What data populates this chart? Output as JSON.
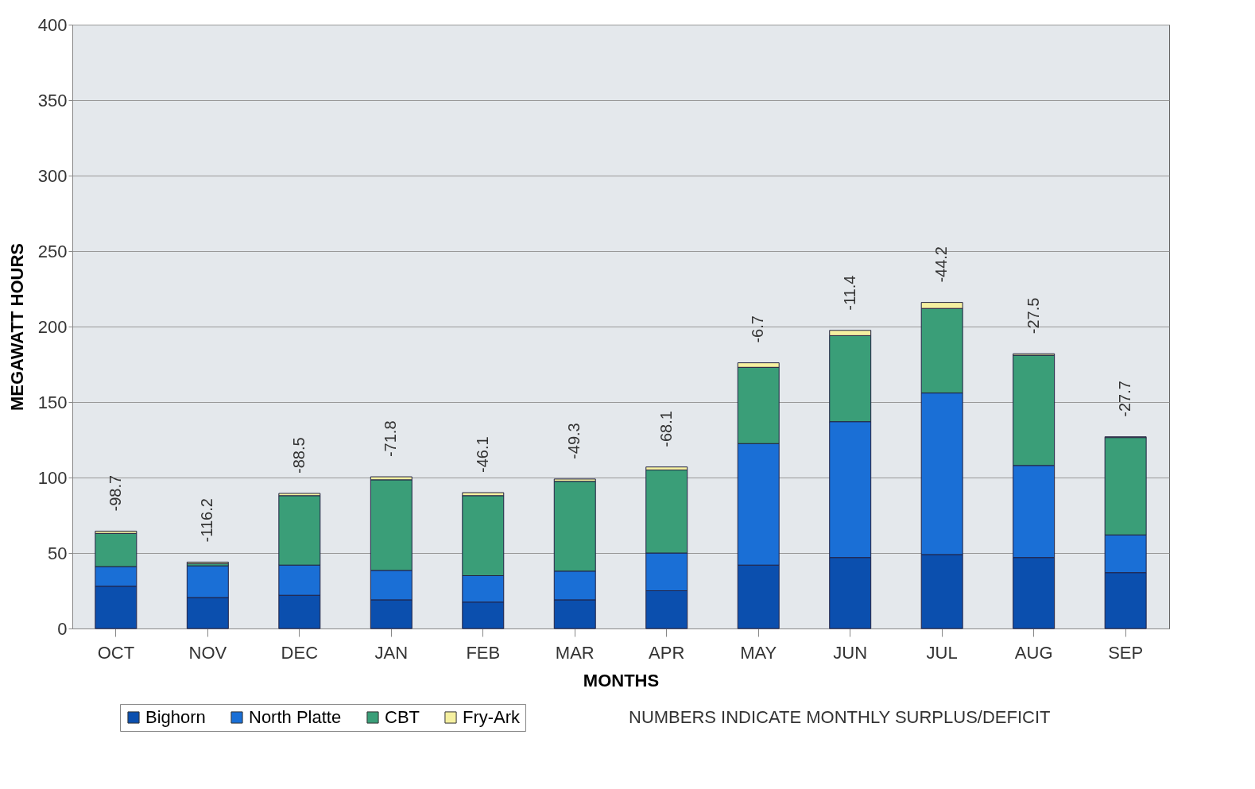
{
  "chart_data": {
    "type": "bar",
    "stacked": true,
    "xlabel": "MONTHS",
    "ylabel": "MEGAWATT HOURS",
    "categories": [
      "OCT",
      "NOV",
      "DEC",
      "JAN",
      "FEB",
      "MAR",
      "APR",
      "MAY",
      "JUN",
      "JUL",
      "AUG",
      "SEP"
    ],
    "series": [
      {
        "name": "Bighorn",
        "color": "#0b4fae",
        "values": [
          28,
          20.5,
          22,
          19,
          17.5,
          19,
          25,
          42,
          47,
          49,
          47,
          37
        ]
      },
      {
        "name": "North Platte",
        "color": "#1a6fd6",
        "values": [
          13,
          21,
          20,
          19.5,
          17.5,
          19,
          25,
          80.5,
          90,
          107,
          61,
          25
        ]
      },
      {
        "name": "CBT",
        "color": "#3a9e78",
        "values": [
          22,
          1.5,
          46,
          60,
          53,
          59.5,
          55,
          50.5,
          57,
          56,
          73,
          64.5
        ]
      },
      {
        "name": "Fry-Ark",
        "color": "#f5f0a0",
        "values": [
          1.5,
          1,
          1.5,
          2,
          2,
          1.5,
          2,
          3,
          3.5,
          4,
          1,
          0.5
        ]
      }
    ],
    "ylim": [
      0,
      400
    ],
    "yticks": [
      0,
      50,
      100,
      150,
      200,
      250,
      300,
      350,
      400
    ],
    "grid": "y",
    "legend": "bottom",
    "annotations": [
      "-98.7",
      "-116.2",
      "-88.5",
      "-71.8",
      "-46.1",
      "-49.3",
      "-68.1",
      "-6.7",
      "-11.4",
      "-44.2",
      "-27.5",
      "-27.7",
      "NUMBERS INDICATE MONTHLY SURPLUS/DEFICIT"
    ]
  }
}
